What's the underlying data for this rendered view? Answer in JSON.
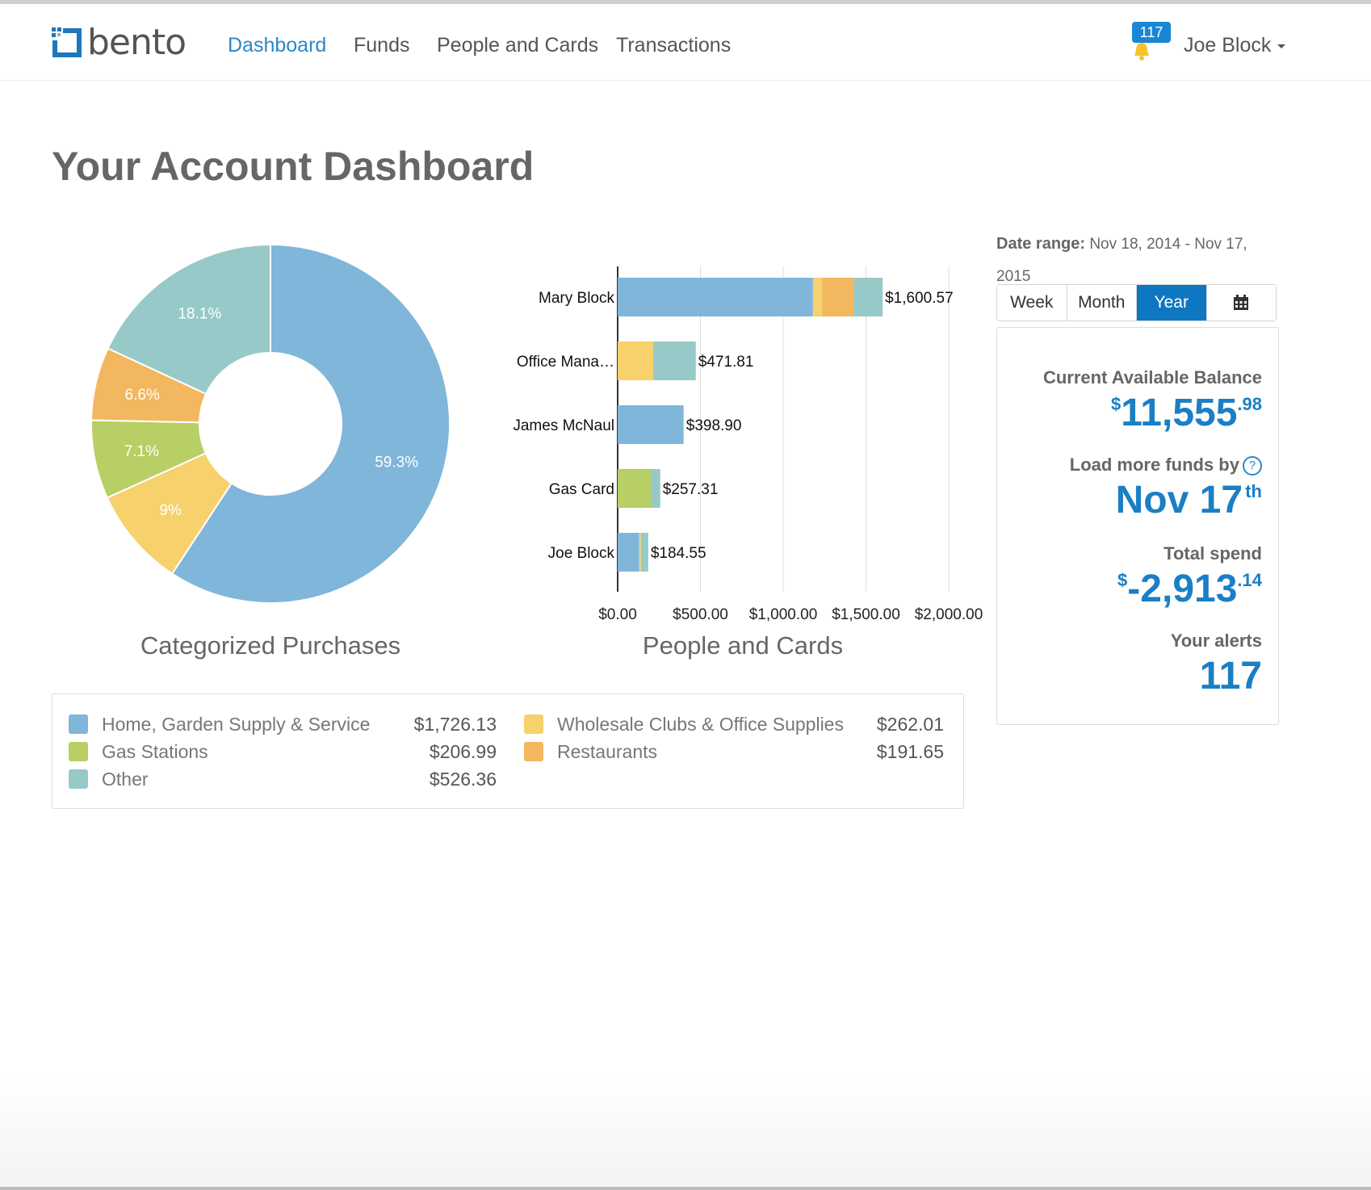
{
  "brand": {
    "name": "bento"
  },
  "nav": {
    "items": [
      "Dashboard",
      "Funds",
      "People and Cards",
      "Transactions"
    ],
    "active": "Dashboard"
  },
  "notifications": {
    "count": "117",
    "icon": "bell-icon"
  },
  "user": {
    "name": "Joe Block"
  },
  "page": {
    "title": "Your Account Dashboard"
  },
  "colors": {
    "accent": "#2b87c8",
    "blue": "#7fb6da",
    "teal": "#97c9c8",
    "orange": "#f3b75f",
    "yellow": "#f6d16c",
    "green": "#b7cf65",
    "active_button": "#0d77c2"
  },
  "captions": {
    "donut": "Categorized Purchases",
    "bars": "People and Cards"
  },
  "legend": [
    {
      "label": "Home, Garden Supply & Service",
      "value": "$1,726.13",
      "color": "#7fb6da"
    },
    {
      "label": "Gas Stations",
      "value": "$206.99",
      "color": "#b7cf65"
    },
    {
      "label": "Other",
      "value": "$526.36",
      "color": "#97c9c8"
    },
    {
      "label": "Wholesale Clubs & Office Supplies",
      "value": "$262.01",
      "color": "#f6d16c"
    },
    {
      "label": "Restaurants",
      "value": "$191.65",
      "color": "#f3b75f"
    }
  ],
  "date_range": {
    "label": "Date range:",
    "value": "Nov 18, 2014 - Nov 17, 2015"
  },
  "range_buttons": {
    "week": "Week",
    "month": "Month",
    "year": "Year",
    "active": "Year",
    "calendar_icon": "calendar-icon"
  },
  "stats": {
    "balance_label": "Current Available Balance",
    "balance_currency": "$",
    "balance_whole": "11,555",
    "balance_cents": ".98",
    "load_label": "Load more funds by",
    "load_help_icon": "help-icon",
    "load_date": "Nov 17",
    "load_suffix": "th",
    "spend_label": "Total spend",
    "spend_currency": "$",
    "spend_whole": "-2,913",
    "spend_cents": ".14",
    "alerts_label": "Your alerts",
    "alerts_value": "117"
  },
  "chart_data": [
    {
      "type": "pie",
      "title": "Categorized Purchases",
      "donut": true,
      "labels": [
        "Home, Garden Supply & Service",
        "Wholesale Clubs & Office Supplies",
        "Gas Stations",
        "Restaurants",
        "Other"
      ],
      "values": [
        59.3,
        9,
        7.1,
        6.6,
        18.1
      ],
      "value_labels": [
        "59.3%",
        "9%",
        "7.1%",
        "6.6%",
        "18.1%"
      ],
      "colors": [
        "#7fb6da",
        "#f6d16c",
        "#b7cf65",
        "#f3b75f",
        "#97c9c8"
      ]
    },
    {
      "type": "bar",
      "orientation": "horizontal",
      "stacked": true,
      "title": "People and Cards",
      "categories": [
        "Mary Block",
        "Office Mana…",
        "James McNaul",
        "Gas Card",
        "Joe Block"
      ],
      "series": [
        {
          "values": [
            1180,
            0,
            395,
            0,
            130
          ],
          "color": "#7fb6da"
        },
        {
          "values": [
            0,
            0,
            0,
            200,
            0
          ],
          "color": "#b7cf65"
        },
        {
          "values": [
            55,
            215,
            0,
            0,
            10
          ],
          "color": "#f6d16c"
        },
        {
          "values": [
            190,
            0,
            0,
            0,
            0
          ],
          "color": "#f3b75f"
        },
        {
          "values": [
            175.57,
            256.81,
            3.9,
            57.31,
            44.55
          ],
          "color": "#97c9c8"
        }
      ],
      "totals": [
        1600.57,
        471.81,
        398.9,
        257.31,
        184.55
      ],
      "total_labels": [
        "$1,600.57",
        "$471.81",
        "$398.90",
        "$257.31",
        "$184.55"
      ],
      "x_ticks": [
        0,
        500,
        1000,
        1500,
        2000
      ],
      "x_tick_labels": [
        "$0.00",
        "$500.00",
        "$1,000.00",
        "$1,500.00",
        "$2,000.00"
      ],
      "xlim": [
        0,
        2000
      ],
      "grid": true
    }
  ]
}
